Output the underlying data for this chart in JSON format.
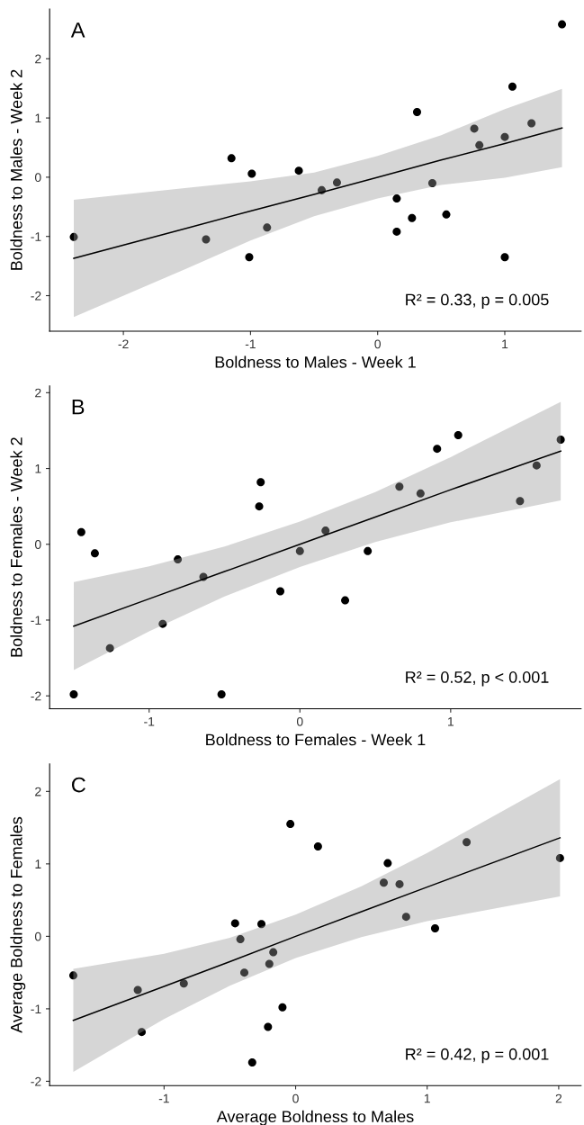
{
  "chart_data": [
    {
      "type": "scatter",
      "xlabel": "Boldness to Males - Week 1",
      "ylabel": "Boldness to Males - Week 2",
      "annotations": [
        "A",
        "R² = 0.33, p = 0.005"
      ],
      "xlim": [
        -2.58,
        1.6
      ],
      "ylim": [
        -2.6,
        2.84
      ],
      "xticks": [
        -2,
        -1,
        0,
        1
      ],
      "yticks": [
        -2,
        -1,
        0,
        1,
        2
      ],
      "grid": false,
      "series": [
        {
          "marker": "circle",
          "color": "#000000",
          "x": [
            -2.39,
            -1.35,
            -1.15,
            -1.01,
            -0.99,
            -0.87,
            -0.62,
            -0.44,
            -0.32,
            0.15,
            0.15,
            0.27,
            0.31,
            0.43,
            0.54,
            0.76,
            0.8,
            1.0,
            1.0,
            1.06,
            1.21,
            1.45
          ],
          "values": [
            -1.01,
            -1.05,
            0.32,
            -1.35,
            0.06,
            -0.85,
            0.11,
            -0.22,
            -0.09,
            -0.36,
            -0.92,
            -0.69,
            1.1,
            -0.1,
            -0.63,
            0.82,
            0.54,
            0.68,
            -1.35,
            1.53,
            0.91,
            2.58
          ]
        },
        {
          "type": "line",
          "color": "#000000",
          "x": [
            -2.39,
            -1.5,
            -1,
            -0.5,
            0,
            0.5,
            1,
            1.45
          ],
          "values": [
            -1.37,
            -0.86,
            -0.57,
            -0.29,
            0.0,
            0.29,
            0.57,
            0.83
          ],
          "upper": [
            -0.38,
            -0.18,
            -0.07,
            0.08,
            0.36,
            0.71,
            1.15,
            1.49
          ],
          "lower": [
            -2.36,
            -1.54,
            -1.07,
            -0.66,
            -0.36,
            -0.13,
            -0.01,
            0.17
          ]
        }
      ]
    },
    {
      "type": "scatter",
      "xlabel": "Boldness to Females - Week 1",
      "ylabel": "Boldness to Females - Week 2",
      "annotations": [
        "B",
        "R² = 0.52, p < 0.001"
      ],
      "xlim": [
        -1.66,
        1.865
      ],
      "ylim": [
        -2.17,
        2.09
      ],
      "xticks": [
        -1,
        0,
        1
      ],
      "yticks": [
        -2,
        -1,
        0,
        1,
        2
      ],
      "grid": false,
      "series": [
        {
          "marker": "circle",
          "color": "#000000",
          "x": [
            -1.5,
            -1.45,
            -1.36,
            -1.26,
            -0.91,
            -0.81,
            -0.64,
            -0.52,
            -0.27,
            -0.26,
            -0.13,
            0.0,
            0.17,
            0.3,
            0.45,
            0.66,
            0.8,
            0.91,
            1.05,
            1.46,
            1.57,
            1.73
          ],
          "values": [
            -1.98,
            0.16,
            -0.12,
            -1.37,
            -1.05,
            -0.2,
            -0.43,
            -1.98,
            0.5,
            0.82,
            -0.62,
            -0.09,
            0.18,
            -0.74,
            -0.09,
            0.76,
            0.67,
            1.26,
            1.44,
            0.57,
            1.04,
            1.38
          ]
        },
        {
          "type": "line",
          "color": "#000000",
          "x": [
            -1.5,
            -1,
            -0.5,
            0,
            0.5,
            1,
            1.73
          ],
          "values": [
            -1.08,
            -0.72,
            -0.36,
            0.0,
            0.36,
            0.72,
            1.23
          ],
          "upper": [
            -0.5,
            -0.29,
            -0.03,
            0.3,
            0.69,
            1.15,
            1.88
          ],
          "lower": [
            -1.66,
            -1.15,
            -0.69,
            -0.3,
            0.03,
            0.29,
            0.58
          ]
        }
      ]
    },
    {
      "type": "scatter",
      "xlabel": "Average Boldness to Males",
      "ylabel": "Average Boldness to Females",
      "annotations": [
        "C",
        "R² = 0.42, p = 0.001"
      ],
      "xlim": [
        -1.87,
        2.17
      ],
      "ylim": [
        -2.06,
        2.38
      ],
      "xticks": [
        -1,
        0,
        1,
        2
      ],
      "yticks": [
        -2,
        -1,
        0,
        1,
        2
      ],
      "grid": false,
      "series": [
        {
          "marker": "circle",
          "color": "#000000",
          "x": [
            -1.69,
            -1.2,
            -1.17,
            -0.85,
            -0.46,
            -0.42,
            -0.39,
            -0.33,
            -0.26,
            -0.21,
            -0.2,
            -0.17,
            -0.1,
            -0.04,
            0.17,
            0.67,
            0.7,
            0.79,
            0.84,
            1.06,
            1.3,
            2.01
          ],
          "values": [
            -0.54,
            -0.74,
            -1.32,
            -0.65,
            0.18,
            -0.04,
            -0.5,
            -1.74,
            0.17,
            -1.25,
            -0.38,
            -0.22,
            -0.98,
            1.55,
            1.24,
            0.74,
            1.01,
            0.72,
            0.27,
            0.11,
            1.3,
            1.08
          ]
        },
        {
          "type": "line",
          "color": "#000000",
          "x": [
            -1.69,
            -1,
            -0.5,
            0,
            0.5,
            1,
            2.01
          ],
          "values": [
            -1.16,
            -0.69,
            -0.35,
            0.0,
            0.34,
            0.68,
            1.36
          ],
          "upper": [
            -0.45,
            -0.24,
            -0.02,
            0.3,
            0.69,
            1.15,
            2.17
          ],
          "lower": [
            -1.87,
            -1.14,
            -0.68,
            -0.3,
            -0.01,
            0.21,
            0.55
          ]
        }
      ]
    }
  ]
}
